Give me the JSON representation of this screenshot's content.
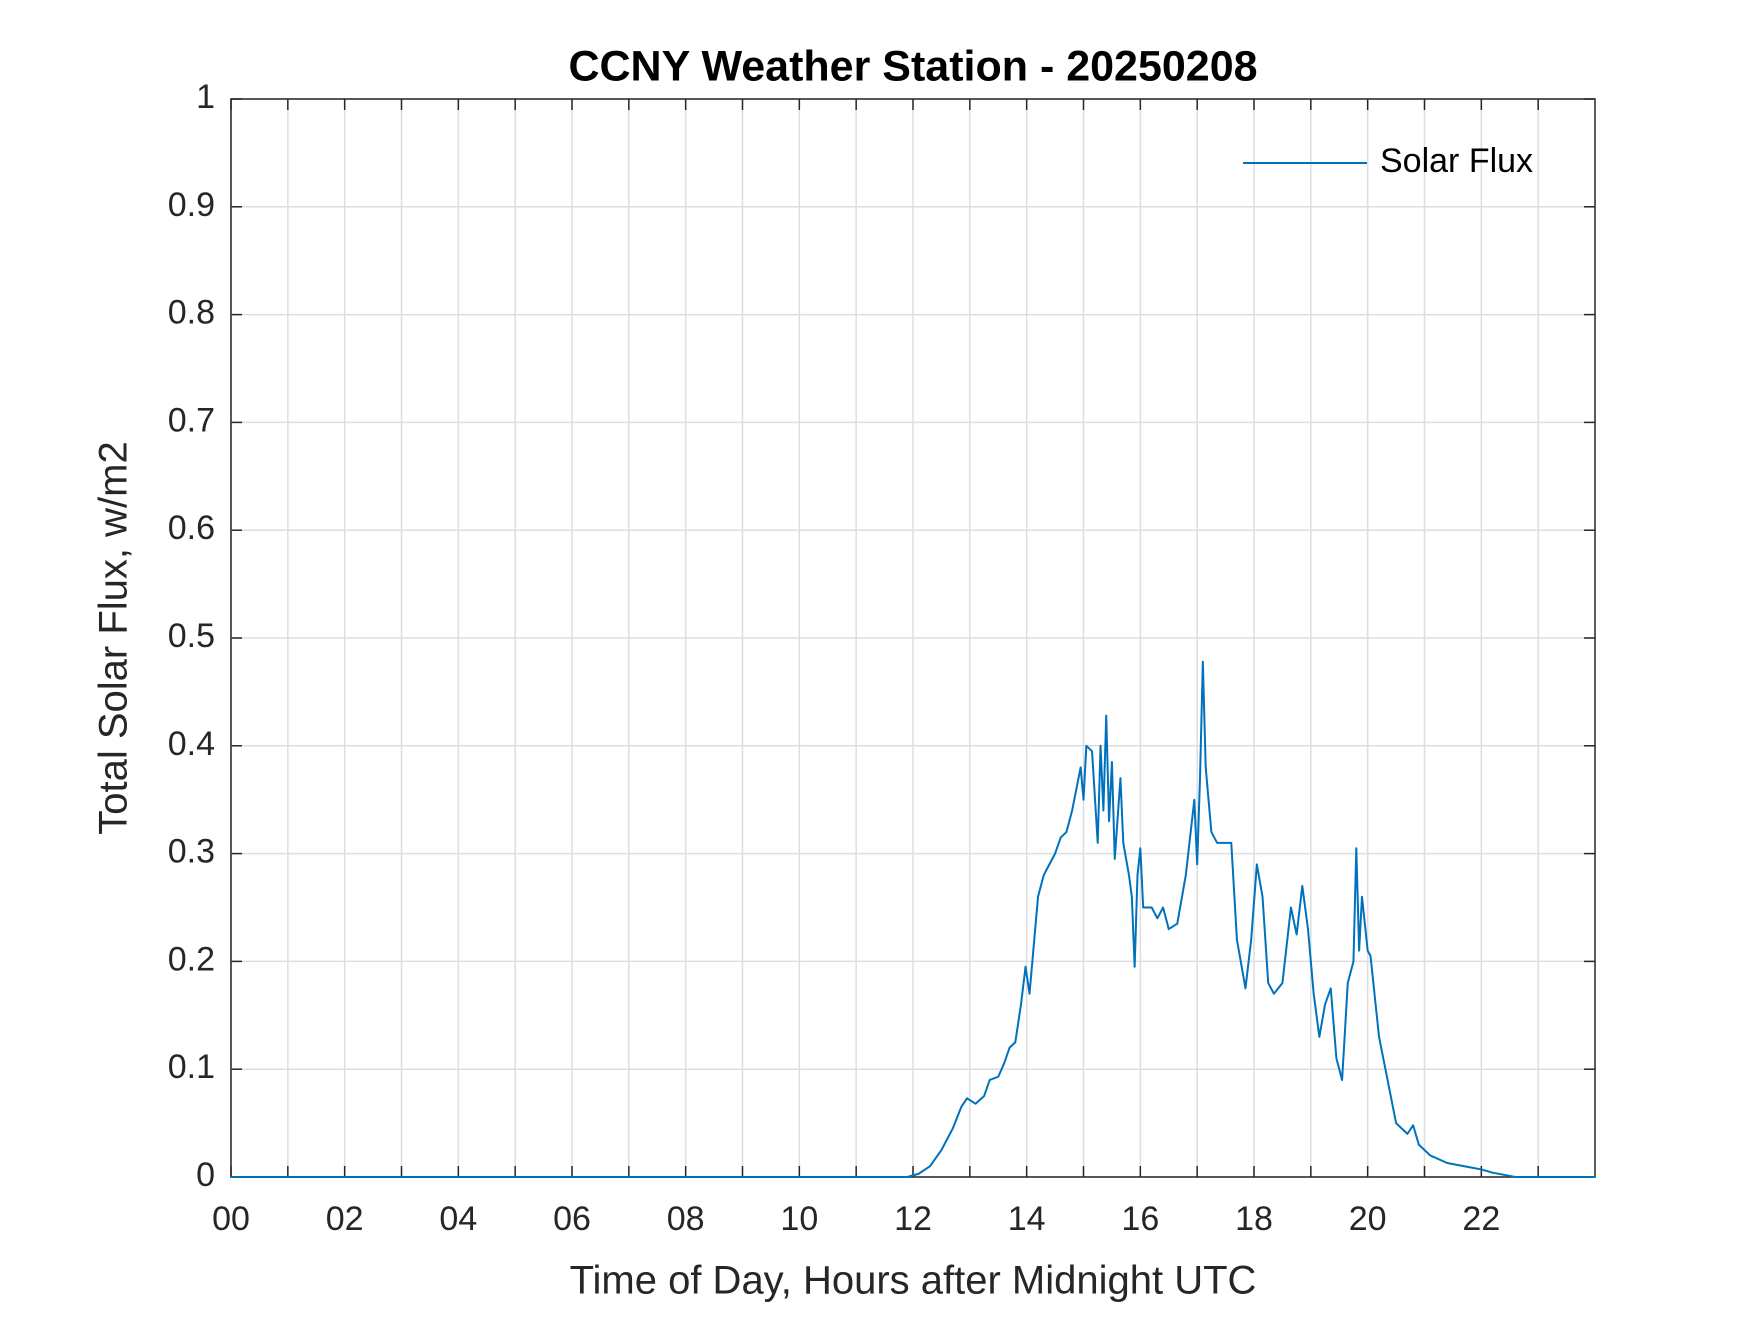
{
  "chart_data": {
    "type": "line",
    "title": "CCNY Weather Station - 20250208",
    "xlabel": "Time of Day, Hours after Midnight UTC",
    "ylabel": "Total Solar Flux, w/m2",
    "xlim": [
      0,
      24
    ],
    "xticks": [
      {
        "value": 0,
        "label": "00"
      },
      {
        "value": 2,
        "label": "02"
      },
      {
        "value": 4,
        "label": "04"
      },
      {
        "value": 6,
        "label": "06"
      },
      {
        "value": 8,
        "label": "08"
      },
      {
        "value": 10,
        "label": "10"
      },
      {
        "value": 12,
        "label": "12"
      },
      {
        "value": 14,
        "label": "14"
      },
      {
        "value": 16,
        "label": "16"
      },
      {
        "value": 18,
        "label": "18"
      },
      {
        "value": 20,
        "label": "20"
      },
      {
        "value": 22,
        "label": "22"
      }
    ],
    "xminorticks": [
      1,
      3,
      5,
      7,
      9,
      11,
      13,
      15,
      17,
      19,
      21,
      23
    ],
    "ylim": [
      0,
      1
    ],
    "yticks": [
      0,
      0.1,
      0.2,
      0.3,
      0.4,
      0.5,
      0.6,
      0.7,
      0.8,
      0.9,
      1
    ],
    "grid": true,
    "legend": "upper right",
    "x": [
      0,
      11.9,
      12.1,
      12.3,
      12.5,
      12.7,
      12.85,
      12.95,
      13.1,
      13.25,
      13.35,
      13.5,
      13.6,
      13.7,
      13.8,
      13.9,
      13.98,
      14.05,
      14.1,
      14.2,
      14.3,
      14.4,
      14.5,
      14.6,
      14.7,
      14.8,
      14.95,
      15.0,
      15.05,
      15.15,
      15.25,
      15.3,
      15.35,
      15.4,
      15.45,
      15.5,
      15.55,
      15.65,
      15.7,
      15.8,
      15.85,
      15.9,
      15.95,
      16.0,
      16.05,
      16.2,
      16.3,
      16.4,
      16.5,
      16.65,
      16.8,
      16.95,
      17.0,
      17.05,
      17.1,
      17.15,
      17.25,
      17.35,
      17.5,
      17.6,
      17.7,
      17.85,
      17.95,
      18.05,
      18.15,
      18.25,
      18.35,
      18.5,
      18.65,
      18.75,
      18.85,
      18.95,
      19.05,
      19.15,
      19.25,
      19.35,
      19.45,
      19.55,
      19.65,
      19.75,
      19.8,
      19.85,
      19.9,
      20.0,
      20.05,
      20.2,
      20.35,
      20.5,
      20.7,
      20.8,
      20.9,
      21.1,
      21.4,
      21.7,
      22.0,
      22.2,
      22.5,
      22.6,
      24
    ],
    "series": [
      {
        "name": "Solar Flux",
        "color": "#0072bd",
        "values": [
          0,
          0,
          0.003,
          0.01,
          0.025,
          0.045,
          0.065,
          0.073,
          0.068,
          0.075,
          0.09,
          0.093,
          0.105,
          0.12,
          0.125,
          0.16,
          0.195,
          0.17,
          0.2,
          0.26,
          0.28,
          0.29,
          0.3,
          0.315,
          0.32,
          0.34,
          0.38,
          0.35,
          0.4,
          0.395,
          0.31,
          0.4,
          0.34,
          0.428,
          0.33,
          0.385,
          0.295,
          0.37,
          0.31,
          0.28,
          0.26,
          0.195,
          0.28,
          0.305,
          0.25,
          0.25,
          0.24,
          0.25,
          0.23,
          0.235,
          0.28,
          0.35,
          0.29,
          0.37,
          0.478,
          0.38,
          0.32,
          0.31,
          0.31,
          0.31,
          0.22,
          0.175,
          0.22,
          0.29,
          0.26,
          0.18,
          0.17,
          0.18,
          0.25,
          0.225,
          0.27,
          0.23,
          0.17,
          0.13,
          0.16,
          0.175,
          0.11,
          0.09,
          0.18,
          0.2,
          0.305,
          0.21,
          0.26,
          0.21,
          0.205,
          0.13,
          0.09,
          0.05,
          0.04,
          0.048,
          0.03,
          0.02,
          0.013,
          0.01,
          0.007,
          0.004,
          0.001,
          0,
          0
        ]
      }
    ]
  }
}
